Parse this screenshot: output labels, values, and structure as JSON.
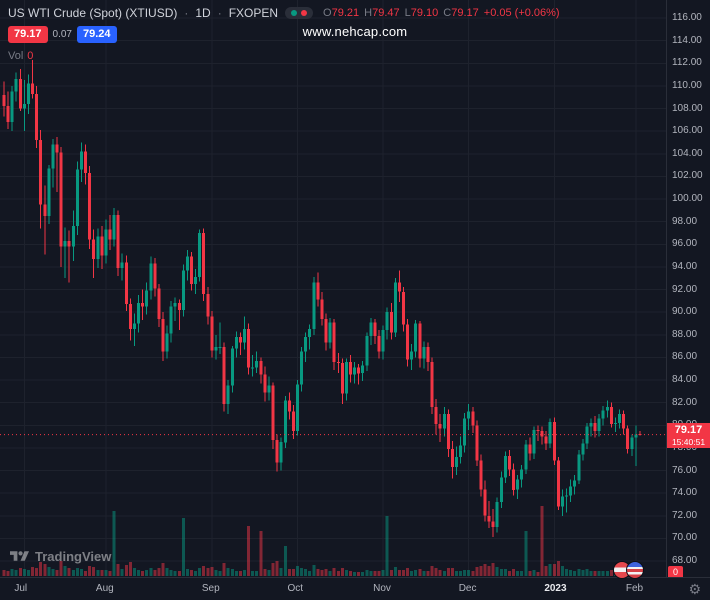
{
  "header": {
    "symbol": "US WTI Crude (Spot) (XTIUSD)",
    "separator": "·",
    "interval": "1D",
    "exchange": "FXOPEN",
    "ohlc": {
      "o_label": "O",
      "o_value": "79.21",
      "h_label": "H",
      "h_value": "79.47",
      "l_label": "L",
      "l_value": "79.10",
      "c_label": "C",
      "c_value": "79.17",
      "change": "+0.05 (+0.06%)"
    },
    "bid": "79.17",
    "spread": "0.07",
    "ask": "79.24",
    "vol_label": "Vol",
    "vol_value": "0"
  },
  "watermark": "www.nehcap.com",
  "price_scale": {
    "labels": [
      "116.00",
      "114.00",
      "112.00",
      "110.00",
      "108.00",
      "106.00",
      "104.00",
      "102.00",
      "100.00",
      "98.00",
      "96.00",
      "94.00",
      "92.00",
      "90.00",
      "88.00",
      "86.00",
      "84.00",
      "82.00",
      "80.00",
      "78.00",
      "76.00",
      "74.00",
      "72.00",
      "70.00",
      "68.00"
    ],
    "last_price": "79.17",
    "countdown": "15:40:51",
    "volume_axis_value": "0"
  },
  "time_scale": {
    "ticks": [
      [
        "Jul",
        5
      ],
      [
        "Aug",
        25
      ],
      [
        "Sep",
        51
      ],
      [
        "Oct",
        72
      ],
      [
        "Nov",
        93
      ],
      [
        "Dec",
        114
      ],
      [
        "2023",
        135,
        true
      ],
      [
        "Feb",
        155
      ]
    ]
  },
  "footer": {
    "logo_text": "TradingView"
  },
  "icons": {
    "settings_gear": "⚙"
  },
  "colors": {
    "up": "#089981",
    "down": "#f23645",
    "accent_blue": "#2962ff",
    "background": "#131722",
    "grid": "#1e222d",
    "axis_text": "#b2b5be"
  },
  "chart_data": {
    "type": "candlestick",
    "symbol": "US WTI Crude (Spot) XTIUSD",
    "timeframe": "1D",
    "exchange": "FXOPEN",
    "title": "US WTI Crude (Spot) (XTIUSD) · 1D · FXOPEN",
    "last_price": 79.17,
    "price_axis": {
      "min": 68,
      "max": 116,
      "step": 2
    },
    "x_axis_months": [
      "Jul",
      "Aug",
      "Sep",
      "Oct",
      "Nov",
      "Dec",
      "2023",
      "Feb"
    ],
    "legend_note": "candles are [open, high, low, close, relative_volume]",
    "candles": [
      [
        109.2,
        110.4,
        107.3,
        108.2,
        6
      ],
      [
        108.2,
        109.5,
        106.2,
        106.8,
        5
      ],
      [
        106.8,
        110.0,
        106.0,
        109.5,
        7
      ],
      [
        109.5,
        111.2,
        108.6,
        110.6,
        6
      ],
      [
        110.6,
        111.5,
        107.8,
        108.0,
        8
      ],
      [
        108.0,
        110.5,
        106.0,
        108.4,
        7
      ],
      [
        108.4,
        111.0,
        107.5,
        110.2,
        6
      ],
      [
        110.2,
        112.3,
        108.9,
        109.3,
        9
      ],
      [
        109.3,
        110.0,
        104.5,
        105.2,
        8
      ],
      [
        105.2,
        106.1,
        97.4,
        99.5,
        14
      ],
      [
        99.5,
        101.2,
        95.1,
        98.5,
        12
      ],
      [
        98.5,
        103.0,
        97.8,
        102.7,
        9
      ],
      [
        102.7,
        105.3,
        101.0,
        104.8,
        7
      ],
      [
        104.8,
        105.5,
        100.6,
        104.1,
        6
      ],
      [
        104.1,
        104.6,
        94.0,
        95.8,
        15
      ],
      [
        95.8,
        97.5,
        93.0,
        96.3,
        10
      ],
      [
        96.3,
        97.2,
        92.6,
        95.8,
        8
      ],
      [
        95.8,
        99.0,
        94.5,
        97.6,
        6
      ],
      [
        97.6,
        103.3,
        96.8,
        102.6,
        8
      ],
      [
        102.6,
        105.0,
        101.5,
        104.2,
        7
      ],
      [
        104.2,
        104.8,
        101.3,
        102.3,
        5
      ],
      [
        102.3,
        102.9,
        95.6,
        96.4,
        10
      ],
      [
        96.4,
        97.3,
        93.0,
        94.7,
        9
      ],
      [
        94.7,
        97.4,
        93.9,
        96.7,
        6
      ],
      [
        96.7,
        97.6,
        93.8,
        95.0,
        6
      ],
      [
        95.0,
        98.2,
        94.3,
        97.3,
        6
      ],
      [
        97.3,
        98.6,
        95.5,
        96.4,
        5
      ],
      [
        96.4,
        99.2,
        95.8,
        98.6,
        65
      ],
      [
        98.6,
        99.0,
        93.2,
        93.9,
        12
      ],
      [
        93.9,
        95.2,
        92.8,
        94.4,
        7
      ],
      [
        94.4,
        95.0,
        90.1,
        90.7,
        11
      ],
      [
        90.7,
        91.2,
        87.5,
        88.5,
        14
      ],
      [
        88.5,
        89.9,
        87.0,
        89.0,
        8
      ],
      [
        89.0,
        91.5,
        88.2,
        90.8,
        6
      ],
      [
        90.8,
        92.0,
        89.3,
        90.5,
        5
      ],
      [
        90.5,
        92.6,
        89.8,
        91.9,
        6
      ],
      [
        91.9,
        94.9,
        91.1,
        94.3,
        8
      ],
      [
        94.3,
        94.8,
        91.4,
        92.1,
        6
      ],
      [
        92.1,
        92.5,
        88.7,
        89.4,
        8
      ],
      [
        89.4,
        90.0,
        85.7,
        86.5,
        13
      ],
      [
        86.5,
        88.8,
        85.9,
        88.1,
        8
      ],
      [
        88.1,
        91.0,
        87.3,
        90.5,
        6
      ],
      [
        90.5,
        91.3,
        89.2,
        90.8,
        5
      ],
      [
        90.8,
        91.1,
        88.4,
        90.2,
        5
      ],
      [
        90.2,
        94.2,
        89.6,
        93.7,
        58
      ],
      [
        93.7,
        95.5,
        92.8,
        94.9,
        7
      ],
      [
        94.9,
        95.3,
        91.9,
        92.5,
        6
      ],
      [
        92.5,
        93.8,
        91.6,
        93.1,
        5
      ],
      [
        93.1,
        97.3,
        92.7,
        97.0,
        8
      ],
      [
        97.0,
        97.4,
        91.0,
        91.6,
        10
      ],
      [
        91.6,
        92.2,
        88.9,
        89.6,
        8
      ],
      [
        89.6,
        90.1,
        86.0,
        86.6,
        9
      ],
      [
        86.6,
        88.0,
        85.8,
        86.9,
        6
      ],
      [
        86.9,
        89.1,
        86.3,
        86.9,
        5
      ],
      [
        86.9,
        87.3,
        81.2,
        81.9,
        13
      ],
      [
        81.9,
        84.0,
        81.0,
        83.5,
        8
      ],
      [
        83.5,
        87.0,
        82.9,
        86.8,
        7
      ],
      [
        86.8,
        88.3,
        86.0,
        87.8,
        5
      ],
      [
        87.8,
        88.2,
        86.2,
        87.3,
        5
      ],
      [
        87.3,
        89.6,
        86.7,
        88.5,
        6
      ],
      [
        88.5,
        89.0,
        84.5,
        85.1,
        50
      ],
      [
        85.1,
        86.2,
        84.3,
        85.1,
        5
      ],
      [
        85.1,
        86.5,
        84.6,
        85.7,
        5
      ],
      [
        85.7,
        86.0,
        83.7,
        84.5,
        45
      ],
      [
        84.5,
        85.2,
        82.1,
        82.9,
        7
      ],
      [
        82.9,
        84.3,
        82.2,
        83.5,
        6
      ],
      [
        83.5,
        83.8,
        77.9,
        78.7,
        13
      ],
      [
        78.7,
        79.2,
        75.9,
        76.7,
        15
      ],
      [
        76.7,
        78.9,
        76.0,
        78.5,
        8
      ],
      [
        78.5,
        82.6,
        78.0,
        82.2,
        30
      ],
      [
        82.2,
        82.9,
        80.5,
        81.2,
        7
      ],
      [
        81.2,
        81.8,
        78.8,
        79.5,
        7
      ],
      [
        79.5,
        84.0,
        79.1,
        83.6,
        10
      ],
      [
        83.6,
        86.9,
        83.0,
        86.5,
        8
      ],
      [
        86.5,
        88.2,
        85.6,
        87.8,
        7
      ],
      [
        87.8,
        88.9,
        86.7,
        88.5,
        5
      ],
      [
        88.5,
        93.1,
        88.0,
        92.6,
        11
      ],
      [
        92.6,
        93.5,
        90.5,
        91.1,
        7
      ],
      [
        91.1,
        91.8,
        88.8,
        89.4,
        6
      ],
      [
        89.4,
        89.9,
        86.6,
        87.3,
        7
      ],
      [
        87.3,
        89.5,
        86.8,
        89.1,
        5
      ],
      [
        89.1,
        89.4,
        84.9,
        85.6,
        8
      ],
      [
        85.6,
        86.4,
        84.6,
        85.5,
        5
      ],
      [
        85.5,
        85.9,
        81.9,
        82.8,
        8
      ],
      [
        82.8,
        85.9,
        82.2,
        85.6,
        6
      ],
      [
        85.6,
        86.2,
        83.8,
        84.5,
        5
      ],
      [
        84.5,
        85.6,
        83.7,
        85.1,
        4
      ],
      [
        85.1,
        85.4,
        83.6,
        84.6,
        4
      ],
      [
        84.6,
        85.7,
        83.9,
        85.3,
        4
      ],
      [
        85.3,
        88.2,
        84.8,
        87.9,
        6
      ],
      [
        87.9,
        89.5,
        87.1,
        89.1,
        5
      ],
      [
        89.1,
        89.4,
        87.2,
        87.9,
        5
      ],
      [
        87.9,
        88.4,
        85.9,
        86.5,
        5
      ],
      [
        86.5,
        88.8,
        85.8,
        88.4,
        6
      ],
      [
        88.4,
        90.4,
        87.6,
        90.0,
        60
      ],
      [
        90.0,
        90.8,
        87.6,
        88.2,
        6
      ],
      [
        88.2,
        93.0,
        87.8,
        92.6,
        9
      ],
      [
        92.6,
        93.7,
        90.9,
        91.8,
        6
      ],
      [
        91.8,
        92.2,
        88.3,
        88.9,
        6
      ],
      [
        88.9,
        89.4,
        85.2,
        85.8,
        8
      ],
      [
        85.8,
        87.2,
        84.9,
        86.5,
        5
      ],
      [
        86.5,
        89.3,
        86.0,
        89.0,
        6
      ],
      [
        89.0,
        89.2,
        85.1,
        85.9,
        7
      ],
      [
        85.9,
        87.4,
        85.0,
        86.9,
        5
      ],
      [
        86.9,
        87.3,
        84.8,
        85.6,
        5
      ],
      [
        85.6,
        86.0,
        81.0,
        81.6,
        10
      ],
      [
        81.6,
        82.3,
        79.2,
        80.1,
        8
      ],
      [
        80.1,
        81.0,
        78.5,
        79.7,
        6
      ],
      [
        79.7,
        81.6,
        79.0,
        81.0,
        5
      ],
      [
        81.0,
        81.4,
        77.2,
        77.9,
        8
      ],
      [
        77.9,
        78.6,
        75.3,
        76.3,
        8
      ],
      [
        76.3,
        78.1,
        75.6,
        77.2,
        5
      ],
      [
        77.2,
        79.0,
        76.6,
        78.2,
        5
      ],
      [
        78.2,
        81.1,
        77.6,
        80.6,
        6
      ],
      [
        80.6,
        81.9,
        79.6,
        81.2,
        6
      ],
      [
        81.2,
        81.6,
        79.3,
        80.0,
        5
      ],
      [
        80.0,
        80.4,
        76.4,
        76.9,
        9
      ],
      [
        76.9,
        77.4,
        73.7,
        74.3,
        10
      ],
      [
        74.3,
        75.1,
        71.5,
        72.0,
        12
      ],
      [
        72.0,
        73.3,
        70.9,
        71.5,
        10
      ],
      [
        71.5,
        72.6,
        70.1,
        71.0,
        13
      ],
      [
        71.0,
        73.6,
        70.5,
        73.2,
        9
      ],
      [
        73.2,
        75.9,
        72.7,
        75.4,
        7
      ],
      [
        75.4,
        77.7,
        74.9,
        77.3,
        7
      ],
      [
        77.3,
        77.8,
        75.5,
        76.1,
        5
      ],
      [
        76.1,
        76.6,
        73.8,
        74.3,
        7
      ],
      [
        74.3,
        75.6,
        73.5,
        75.2,
        5
      ],
      [
        75.2,
        76.5,
        74.5,
        76.1,
        5
      ],
      [
        76.1,
        78.7,
        75.7,
        78.3,
        45
      ],
      [
        78.3,
        78.9,
        76.9,
        77.5,
        5
      ],
      [
        77.5,
        79.9,
        77.0,
        79.6,
        6
      ],
      [
        79.6,
        80.0,
        78.6,
        79.5,
        4
      ],
      [
        79.5,
        79.9,
        78.3,
        79.0,
        70
      ],
      [
        79.0,
        79.5,
        77.8,
        78.4,
        10
      ],
      [
        78.4,
        80.6,
        78.0,
        80.3,
        12
      ],
      [
        80.3,
        80.7,
        76.5,
        76.9,
        12
      ],
      [
        76.9,
        77.2,
        72.5,
        72.8,
        15
      ],
      [
        72.8,
        74.3,
        72.0,
        73.7,
        10
      ],
      [
        73.7,
        74.4,
        72.3,
        73.8,
        7
      ],
      [
        73.8,
        75.2,
        73.2,
        74.6,
        6
      ],
      [
        74.6,
        75.6,
        73.9,
        75.1,
        5
      ],
      [
        75.1,
        77.8,
        74.8,
        77.4,
        7
      ],
      [
        77.4,
        78.8,
        76.9,
        78.4,
        6
      ],
      [
        78.4,
        80.2,
        77.9,
        79.9,
        7
      ],
      [
        79.9,
        80.6,
        79.0,
        80.2,
        5
      ],
      [
        80.2,
        80.8,
        78.9,
        79.5,
        5
      ],
      [
        79.5,
        81.0,
        79.0,
        80.6,
        5
      ],
      [
        80.6,
        81.7,
        80.0,
        81.3,
        5
      ],
      [
        81.3,
        82.2,
        80.7,
        81.6,
        5
      ],
      [
        81.6,
        82.0,
        79.8,
        80.1,
        6
      ],
      [
        80.1,
        80.7,
        79.4,
        80.2,
        4
      ],
      [
        80.2,
        81.4,
        79.7,
        81.0,
        5
      ],
      [
        81.0,
        81.3,
        79.2,
        79.7,
        5
      ],
      [
        79.7,
        80.0,
        77.5,
        77.9,
        6
      ],
      [
        77.9,
        79.2,
        77.3,
        78.9,
        5
      ],
      [
        78.9,
        80.0,
        76.4,
        79.2,
        8
      ],
      [
        79.21,
        79.47,
        79.1,
        79.17,
        3
      ]
    ],
    "volume_pane": {
      "current": 0
    }
  }
}
